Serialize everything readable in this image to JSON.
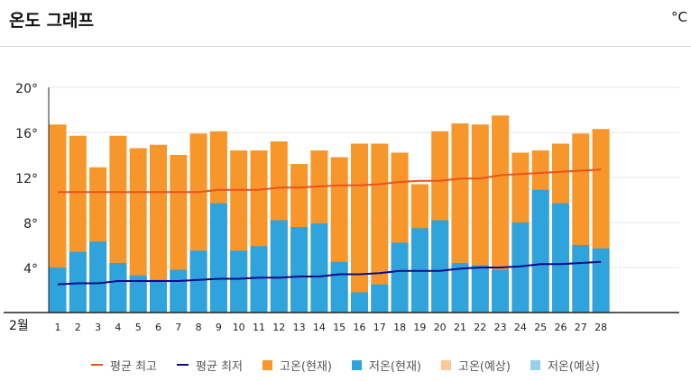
{
  "header": {
    "title": "온도 그래프",
    "unit": "°C"
  },
  "chart_data": {
    "type": "bar",
    "month_label": "2월",
    "categories": [
      "1",
      "2",
      "3",
      "4",
      "5",
      "6",
      "7",
      "8",
      "9",
      "10",
      "11",
      "12",
      "13",
      "14",
      "15",
      "16",
      "17",
      "18",
      "19",
      "20",
      "21",
      "22",
      "23",
      "24",
      "25",
      "26",
      "27",
      "28"
    ],
    "ylim": [
      0,
      20
    ],
    "yticks": [
      4,
      8,
      12,
      16,
      20
    ],
    "ytick_labels": [
      "4°",
      "8°",
      "12°",
      "16°",
      "20°"
    ],
    "grid": true,
    "legend_position": "bottom",
    "series": [
      {
        "name": "고온(현재)",
        "kind": "bar",
        "color": "#f7962a",
        "values": [
          16.7,
          15.7,
          12.9,
          15.7,
          14.6,
          14.9,
          14.0,
          15.9,
          16.1,
          14.4,
          14.4,
          15.2,
          13.2,
          14.4,
          13.8,
          15.0,
          15.0,
          14.2,
          11.4,
          16.1,
          16.8,
          16.7,
          17.5,
          14.2,
          14.4,
          15.0,
          15.9,
          16.3
        ]
      },
      {
        "name": "저온(현재)",
        "kind": "bar",
        "color": "#2fa3db",
        "values": [
          4.0,
          5.4,
          6.3,
          4.4,
          3.3,
          2.9,
          3.8,
          5.5,
          9.7,
          5.5,
          5.9,
          8.2,
          7.6,
          7.9,
          4.5,
          1.8,
          2.5,
          6.2,
          7.5,
          8.2,
          4.4,
          4.2,
          3.8,
          8.0,
          10.9,
          9.7,
          6.0,
          5.7
        ]
      },
      {
        "name": "평균 최고",
        "kind": "line",
        "color": "#e8541e",
        "values": [
          10.7,
          10.7,
          10.7,
          10.7,
          10.7,
          10.7,
          10.7,
          10.7,
          10.9,
          10.9,
          10.9,
          11.1,
          11.1,
          11.2,
          11.3,
          11.3,
          11.4,
          11.6,
          11.7,
          11.7,
          11.9,
          11.9,
          12.2,
          12.3,
          12.4,
          12.5,
          12.6,
          12.7
        ]
      },
      {
        "name": "평균 최저",
        "kind": "line",
        "color": "#0a0a8c",
        "values": [
          2.5,
          2.6,
          2.6,
          2.8,
          2.8,
          2.8,
          2.8,
          2.9,
          3.0,
          3.0,
          3.1,
          3.1,
          3.2,
          3.2,
          3.4,
          3.4,
          3.5,
          3.7,
          3.7,
          3.7,
          3.9,
          4.0,
          4.0,
          4.1,
          4.3,
          4.3,
          4.4,
          4.5
        ]
      }
    ]
  },
  "legend": {
    "items": [
      {
        "label": "평균 최고",
        "shape": "line",
        "color": "#e8541e"
      },
      {
        "label": "평균 최저",
        "shape": "line",
        "color": "#0a0a8c"
      },
      {
        "label": "고온(현재)",
        "shape": "box",
        "color": "#f7962a"
      },
      {
        "label": "저온(현재)",
        "shape": "box",
        "color": "#2fa3db"
      },
      {
        "label": "고온(예상)",
        "shape": "box",
        "color": "#fbc998"
      },
      {
        "label": "저온(예상)",
        "shape": "box",
        "color": "#96d0ec"
      }
    ]
  }
}
